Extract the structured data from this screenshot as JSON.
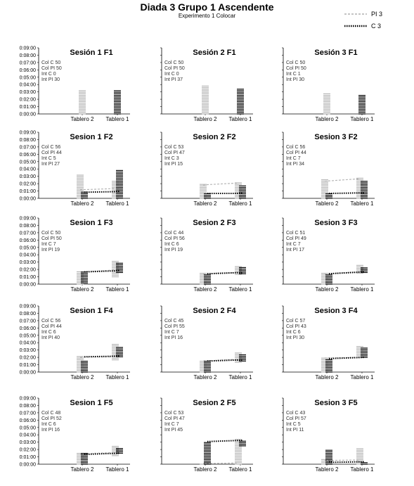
{
  "title": "Diada 3 Grupo 1 Ascendente",
  "subtitle": "Experimento 1 Colocar",
  "legend": [
    {
      "name": "PI 3",
      "color": "#b0b0b0",
      "style": "dashed"
    },
    {
      "name": "C 3",
      "color": "#000000",
      "style": "dotted"
    }
  ],
  "chart_data": [
    {
      "type": "line",
      "title": "Sesión 1 F1",
      "categories": [
        "Tablero 2",
        "Tablero 1"
      ],
      "yticks": [
        "0:00:00",
        "0:01:00",
        "0:02:00",
        "0:03:00",
        "0:04:00",
        "0:05:00",
        "0:06:00",
        "0:07:00",
        "0:08:00",
        "0:09:00"
      ],
      "ylim_sec": [
        0,
        540
      ],
      "annotations": [
        "Col C 50",
        "Col PI 50",
        "Int C 0",
        "Int PI 30"
      ],
      "series": [
        {
          "name": "PI 3",
          "values_sec": [
            null,
            null
          ],
          "range_sec": [
            [
              0,
              190
            ],
            null
          ]
        },
        {
          "name": "C 3",
          "values_sec": [
            null,
            null
          ],
          "range_sec": [
            null,
            [
              0,
              190
            ]
          ]
        }
      ]
    },
    {
      "type": "line",
      "title": "Sesión 2 F1",
      "categories": [
        "Tablero 2",
        "Tablero 1"
      ],
      "yticks": [
        "0:00:00",
        "0:01:00",
        "0:02:00",
        "0:03:00",
        "0:04:00",
        "0:05:00",
        "0:06:00",
        "0:07:00",
        "0:08:00",
        "0:09:00"
      ],
      "ylim_sec": [
        0,
        540
      ],
      "annotations": [
        "Col C 50",
        "Col PI 50",
        "Int C 0",
        "Int PI 37"
      ],
      "series": [
        {
          "name": "PI 3",
          "values_sec": [
            null,
            null
          ],
          "range_sec": [
            [
              0,
              240
            ],
            null
          ]
        },
        {
          "name": "C 3",
          "values_sec": [
            null,
            null
          ],
          "range_sec": [
            null,
            [
              0,
              210
            ]
          ]
        }
      ]
    },
    {
      "type": "line",
      "title": "Sesión 3 F1",
      "categories": [
        "Tablero 2",
        "Tablero 1"
      ],
      "yticks": [
        "0:00:00",
        "0:01:00",
        "0:02:00",
        "0:03:00",
        "0:04:00",
        "0:05:00",
        "0:06:00",
        "0:07:00",
        "0:08:00",
        "0:09:00"
      ],
      "ylim_sec": [
        0,
        540
      ],
      "annotations": [
        "Col C 50",
        "Col PI 50",
        "Int C 1",
        "Int PI 30"
      ],
      "series": [
        {
          "name": "PI 3",
          "values_sec": [
            null,
            null
          ],
          "range_sec": [
            [
              0,
              170
            ],
            null
          ]
        },
        {
          "name": "C 3",
          "values_sec": [
            null,
            null
          ],
          "range_sec": [
            null,
            [
              0,
              160
            ]
          ]
        }
      ]
    },
    {
      "type": "line",
      "title": "Sesion 1 F2",
      "categories": [
        "Tablero 2",
        "Tablero 1"
      ],
      "yticks": [
        "0:00:00",
        "0:01:00",
        "0:02:00",
        "0:03:00",
        "0:04:00",
        "0:05:00",
        "0:06:00",
        "0:07:00",
        "0:08:00",
        "0:09:00"
      ],
      "ylim_sec": [
        0,
        540
      ],
      "annotations": [
        "Col C 56",
        "Col PI 44",
        "Int C 5",
        "Int PI 27"
      ],
      "series": [
        {
          "name": "PI 3",
          "values_sec": [
            70,
            80
          ],
          "range_sec": [
            [
              0,
              200
            ],
            [
              0,
              150
            ]
          ]
        },
        {
          "name": "C 3",
          "values_sec": [
            50,
            55
          ],
          "range_sec": [
            [
              0,
              60
            ],
            [
              0,
              230
            ]
          ]
        }
      ]
    },
    {
      "type": "line",
      "title": "Sesion 2 F2",
      "categories": [
        "Tablero 2",
        "Tablero 1"
      ],
      "yticks": [
        "0:00:00",
        "0:01:00",
        "0:02:00",
        "0:03:00",
        "0:04:00",
        "0:05:00",
        "0:06:00",
        "0:07:00",
        "0:08:00",
        "0:09:00"
      ],
      "ylim_sec": [
        0,
        540
      ],
      "annotations": [
        "Col C 53",
        "Col PI 47",
        "Int C 3",
        "Int PI 15"
      ],
      "series": [
        {
          "name": "PI 3",
          "values_sec": [
            110,
            125
          ],
          "range_sec": [
            [
              0,
              120
            ],
            [
              0,
              130
            ]
          ]
        },
        {
          "name": "C 3",
          "values_sec": [
            40,
            40
          ],
          "range_sec": [
            [
              0,
              45
            ],
            [
              0,
              110
            ]
          ]
        }
      ]
    },
    {
      "type": "line",
      "title": "Sesion 3 F2",
      "categories": [
        "Tablero 2",
        "Tablero 1"
      ],
      "yticks": [
        "0:00:00",
        "0:01:00",
        "0:02:00",
        "0:03:00",
        "0:04:00",
        "0:05:00",
        "0:06:00",
        "0:07:00",
        "0:08:00",
        "0:09:00"
      ],
      "ylim_sec": [
        0,
        540
      ],
      "annotations": [
        "Col C 56",
        "Col PI 44",
        "Int C 7",
        "Int PI 34"
      ],
      "series": [
        {
          "name": "PI 3",
          "values_sec": [
            140,
            160
          ],
          "range_sec": [
            [
              0,
              155
            ],
            [
              0,
              165
            ]
          ]
        },
        {
          "name": "C 3",
          "values_sec": [
            40,
            45
          ],
          "range_sec": [
            [
              0,
              50
            ],
            [
              0,
              150
            ]
          ]
        }
      ]
    },
    {
      "type": "line",
      "title": "Sesion 1 F3",
      "categories": [
        "Tablero 2",
        "Tablero 1"
      ],
      "yticks": [
        "0:00:00",
        "0:01:00",
        "0:02:00",
        "0:03:00",
        "0:04:00",
        "0:05:00",
        "0:06:00",
        "0:07:00",
        "0:08:00",
        "0:09:00"
      ],
      "ylim_sec": [
        0,
        540
      ],
      "annotations": [
        "Col C 50",
        "Col PI 50",
        "Int C 7",
        "Int PI 19"
      ],
      "series": [
        {
          "name": "PI 3",
          "values_sec": [
            100,
            115
          ],
          "range_sec": [
            [
              0,
              110
            ],
            [
              60,
              190
            ]
          ]
        },
        {
          "name": "C 3",
          "values_sec": [
            100,
            110
          ],
          "range_sec": [
            [
              10,
              100
            ],
            [
              95,
              180
            ]
          ]
        }
      ]
    },
    {
      "type": "line",
      "title": "Sesion 2 F3",
      "categories": [
        "Tablero 2",
        "Tablero 1"
      ],
      "yticks": [
        "0:00:00",
        "0:01:00",
        "0:02:00",
        "0:03:00",
        "0:04:00",
        "0:05:00",
        "0:06:00",
        "0:07:00",
        "0:08:00",
        "0:09:00"
      ],
      "ylim_sec": [
        0,
        540
      ],
      "annotations": [
        "Col C 44",
        "Col PI 56",
        "Int C 6",
        "Int PI 19"
      ],
      "series": [
        {
          "name": "PI 3",
          "values_sec": [
            85,
            95
          ],
          "range_sec": [
            [
              0,
              90
            ],
            [
              80,
              150
            ]
          ]
        },
        {
          "name": "C 3",
          "values_sec": [
            85,
            95
          ],
          "range_sec": [
            [
              0,
              80
            ],
            [
              85,
              140
            ]
          ]
        }
      ]
    },
    {
      "type": "line",
      "title": "Sesion 3 F3",
      "categories": [
        "Tablero 2",
        "Tablero 1"
      ],
      "yticks": [
        "0:00:00",
        "0:01:00",
        "0:02:00",
        "0:03:00",
        "0:04:00",
        "0:05:00",
        "0:06:00",
        "0:07:00",
        "0:08:00",
        "0:09:00"
      ],
      "ylim_sec": [
        0,
        540
      ],
      "annotations": [
        "Col C 51",
        "Col PI 49",
        "Int C 7",
        "Int PI 17"
      ],
      "series": [
        {
          "name": "PI 3",
          "values_sec": [
            85,
            100
          ],
          "range_sec": [
            [
              0,
              95
            ],
            [
              90,
              160
            ]
          ]
        },
        {
          "name": "C 3",
          "values_sec": [
            85,
            100
          ],
          "range_sec": [
            [
              0,
              80
            ],
            [
              95,
              140
            ]
          ]
        }
      ]
    },
    {
      "type": "line",
      "title": "Sesion 1 F4",
      "categories": [
        "Tablero 2",
        "Tablero 1"
      ],
      "yticks": [
        "0:00:00",
        "0:01:00",
        "0:02:00",
        "0:03:00",
        "0:04:00",
        "0:05:00",
        "0:06:00",
        "0:07:00",
        "0:08:00",
        "0:09:00"
      ],
      "ylim_sec": [
        0,
        540
      ],
      "annotations": [
        "Col C 56",
        "Col PI 44",
        "Int C 6",
        "Int PI 40"
      ],
      "series": [
        {
          "name": "PI 3",
          "values_sec": [
            120,
            125
          ],
          "range_sec": [
            [
              0,
              130
            ],
            [
              100,
              230
            ]
          ]
        },
        {
          "name": "C 3",
          "values_sec": [
            125,
            130
          ],
          "range_sec": [
            [
              0,
              95
            ],
            [
              125,
              210
            ]
          ]
        }
      ]
    },
    {
      "type": "line",
      "title": "Sesion 2 F4",
      "categories": [
        "Tablero 2",
        "Tablero 1"
      ],
      "yticks": [
        "0:00:00",
        "0:01:00",
        "0:02:00",
        "0:03:00",
        "0:04:00",
        "0:05:00",
        "0:06:00",
        "0:07:00",
        "0:08:00",
        "0:09:00"
      ],
      "ylim_sec": [
        0,
        540
      ],
      "annotations": [
        "Col C 45",
        "Col PI 55",
        "Int C 7",
        "Int PI 16"
      ],
      "series": [
        {
          "name": "PI 3",
          "values_sec": [
            90,
            105
          ],
          "range_sec": [
            [
              0,
              95
            ],
            [
              80,
              160
            ]
          ]
        },
        {
          "name": "C 3",
          "values_sec": [
            90,
            100
          ],
          "range_sec": [
            [
              0,
              90
            ],
            [
              90,
              150
            ]
          ]
        }
      ]
    },
    {
      "type": "line",
      "title": "Sesion 3 F4",
      "categories": [
        "Tablero 2",
        "Tablero 1"
      ],
      "yticks": [
        "0:00:00",
        "0:01:00",
        "0:02:00",
        "0:03:00",
        "0:04:00",
        "0:05:00",
        "0:06:00",
        "0:07:00",
        "0:08:00",
        "0:09:00"
      ],
      "ylim_sec": [
        0,
        540
      ],
      "annotations": [
        "Col C 57",
        "Col PI 43",
        "Int C 6",
        "Int PI 30"
      ],
      "series": [
        {
          "name": "PI 3",
          "values_sec": [
            115,
            120
          ],
          "range_sec": [
            [
              0,
              115
            ],
            [
              120,
              210
            ]
          ]
        },
        {
          "name": "C 3",
          "values_sec": [
            110,
            120
          ],
          "range_sec": [
            [
              0,
              110
            ],
            [
              120,
              200
            ]
          ]
        }
      ]
    },
    {
      "type": "line",
      "title": "Sesion 1 F5",
      "categories": [
        "Tablero 2",
        "Tablero 1"
      ],
      "yticks": [
        "0:00:00",
        "0:01:00",
        "0:02:00",
        "0:03:00",
        "0:04:00",
        "0:05:00",
        "0:06:00",
        "0:07:00",
        "0:08:00",
        "0:09:00"
      ],
      "ylim_sec": [
        0,
        540
      ],
      "annotations": [
        "Col C 48",
        "Col PI 52",
        "Int C 6",
        "Int PI 16"
      ],
      "series": [
        {
          "name": "PI 3",
          "values_sec": [
            85,
            95
          ],
          "range_sec": [
            [
              0,
              100
            ],
            [
              70,
              150
            ]
          ]
        },
        {
          "name": "C 3",
          "values_sec": [
            80,
            90
          ],
          "range_sec": [
            [
              0,
              90
            ],
            [
              90,
              140
            ]
          ]
        }
      ]
    },
    {
      "type": "line",
      "title": "Sesion 2 F5",
      "categories": [
        "Tablero 2",
        "Tablero 1"
      ],
      "yticks": [
        "0:00:00",
        "0:01:00",
        "0:02:00",
        "0:03:00",
        "0:04:00",
        "0:05:00",
        "0:06:00",
        "0:07:00",
        "0:08:00",
        "0:09:00"
      ],
      "ylim_sec": [
        0,
        540
      ],
      "annotations": [
        "Col C 53",
        "Col PI 47",
        "Int C 7",
        "Int PI 45"
      ],
      "series": [
        {
          "name": "PI 3",
          "values_sec": [
            5,
            10
          ],
          "range_sec": [
            [
              0,
              10
            ],
            [
              0,
              210
            ]
          ]
        },
        {
          "name": "C 3",
          "values_sec": [
            185,
            195
          ],
          "range_sec": [
            [
              0,
              185
            ],
            [
              150,
              195
            ]
          ]
        }
      ]
    },
    {
      "type": "line",
      "title": "Sesion 3 F5",
      "categories": [
        "Tablero 2",
        "Tablero 1"
      ],
      "yticks": [
        "0:00:00",
        "0:01:00",
        "0:02:00",
        "0:03:00",
        "0:04:00",
        "0:05:00",
        "0:06:00",
        "0:07:00",
        "0:08:00",
        "0:09:00"
      ],
      "ylim_sec": [
        0,
        540
      ],
      "annotations": [
        "Col C 43",
        "Col PI 57",
        "Int C 5",
        "Int PI 11"
      ],
      "series": [
        {
          "name": "PI 3",
          "values_sec": [
            30,
            35
          ],
          "range_sec": [
            [
              0,
              40
            ],
            [
              0,
              130
            ]
          ]
        },
        {
          "name": "C 3",
          "values_sec": [
            15,
            20
          ],
          "range_sec": [
            [
              0,
              120
            ],
            [
              0,
              25
            ]
          ]
        }
      ]
    }
  ]
}
